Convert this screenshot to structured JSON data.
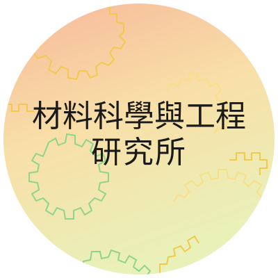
{
  "title": {
    "line1": "材料科學與工程",
    "line2": "研究所"
  },
  "colors": {
    "gradient_top": "#f6b89a",
    "gradient_middle": "#f8dfa8",
    "gradient_bottom": "#e9f0b8",
    "gear_yellow": "#f2c94c",
    "gear_green": "#8fd48a",
    "gear_light_yellow": "#f7df86",
    "text": "#1a1a1a"
  },
  "icons": [
    "gear-icon"
  ]
}
